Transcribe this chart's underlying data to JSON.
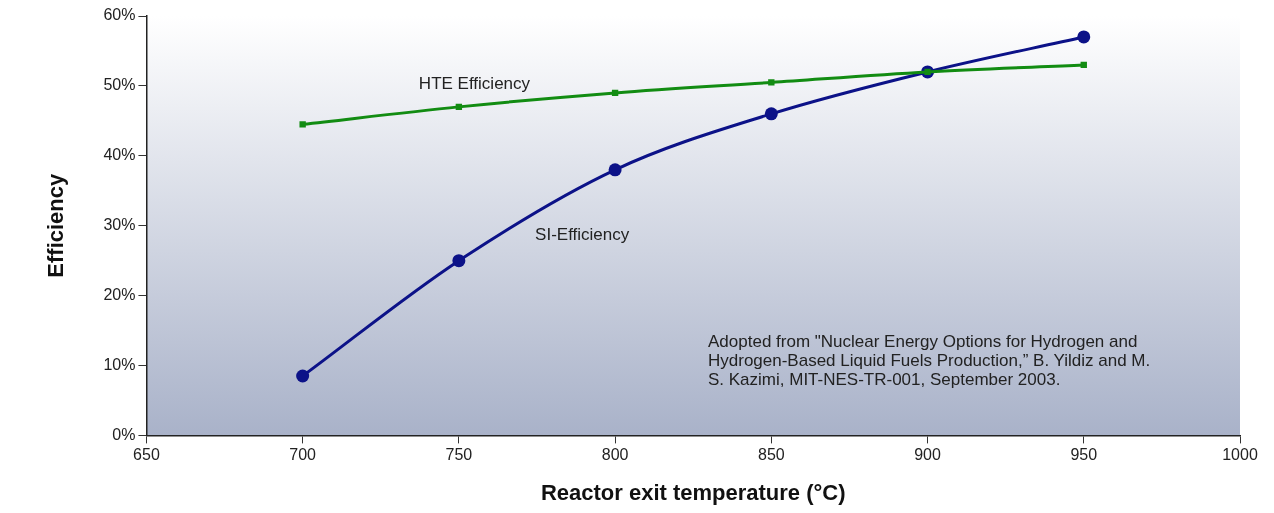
{
  "chart_data": {
    "type": "line",
    "xlabel": "Reactor exit temperature (°C)",
    "ylabel": "Efficiency",
    "x": [
      700,
      750,
      800,
      850,
      900,
      950
    ],
    "series": [
      {
        "name": "HTE Efficiency",
        "color": "#128c12",
        "marker": "square",
        "values": [
          44.5,
          47,
          49,
          50.5,
          52,
          53
        ]
      },
      {
        "name": "SI-Efficiency",
        "color": "#0c1288",
        "marker": "circle",
        "values": [
          8.5,
          25,
          38,
          46,
          52,
          57
        ]
      }
    ],
    "xlim": [
      650,
      1000
    ],
    "xticks": [
      650,
      700,
      750,
      800,
      850,
      900,
      950,
      1000
    ],
    "ylim": [
      0,
      60
    ],
    "yticks": [
      {
        "value": 0,
        "label": "0%"
      },
      {
        "value": 10,
        "label": "10%"
      },
      {
        "value": 20,
        "label": "20%"
      },
      {
        "value": 30,
        "label": "30%"
      },
      {
        "value": 40,
        "label": "40%"
      },
      {
        "value": 50,
        "label": "50%"
      },
      {
        "value": 60,
        "label": "60%"
      }
    ],
    "grid": false,
    "legend": false,
    "annotations": [
      "Adopted from \"Nuclear Energy Options for Hydrogen and Hydrogen-Based Liquid Fuels Production,” B. Yildiz and M. S. Kazimi, MIT-NES-TR-001, September 2003."
    ]
  }
}
